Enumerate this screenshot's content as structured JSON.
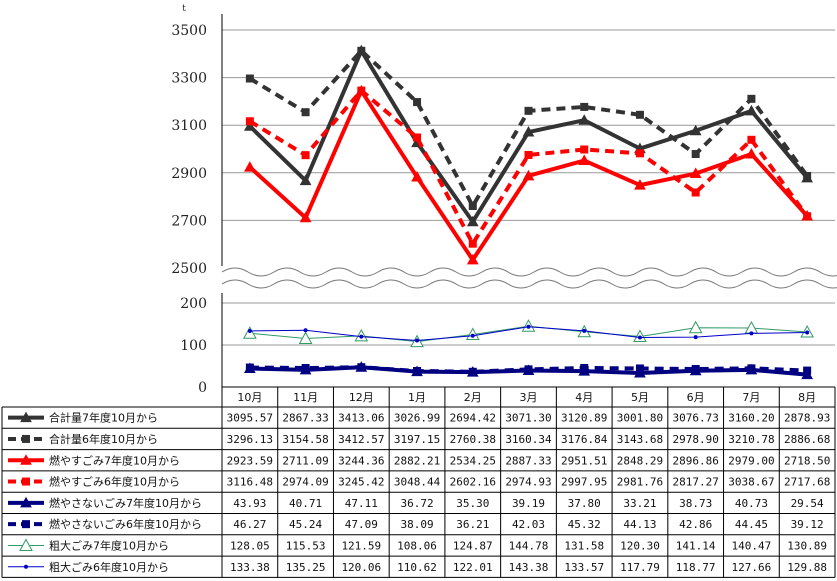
{
  "chart_data": {
    "type": "line",
    "unit_label": "t",
    "categories": [
      "10月",
      "11月",
      "12月",
      "1月",
      "2月",
      "3月",
      "4月",
      "5月",
      "6月",
      "7月",
      "8月"
    ],
    "y_axis_upper": {
      "ticks": [
        "3500",
        "3300",
        "3100",
        "2900",
        "2700",
        "2500"
      ],
      "range": [
        2500,
        3500
      ]
    },
    "y_axis_lower": {
      "ticks": [
        "200",
        "100",
        "0"
      ],
      "range": [
        0,
        200
      ]
    },
    "axis_break": true,
    "grid": true,
    "legend_placement": "data-table-left",
    "colors": {
      "dark_gray": "#333333",
      "red": "#ff0000",
      "navy": "#000080",
      "green": "#339966",
      "blue": "#0000cc"
    },
    "series": [
      {
        "name": "合計量7年度10月から",
        "color": "#333333",
        "dash": false,
        "marker": "triangle",
        "width": 4,
        "values": [
          3095.57,
          2867.33,
          3413.06,
          3026.99,
          2694.42,
          3071.3,
          3120.89,
          3001.8,
          3076.73,
          3160.2,
          2878.93
        ],
        "labels": [
          "3095.57",
          "2867.33",
          "3413.06",
          "3026.99",
          "2694.42",
          "3071.30",
          "3120.89",
          "3001.80",
          "3076.73",
          "3160.20",
          "2878.93"
        ]
      },
      {
        "name": "合計量6年度10月から",
        "color": "#333333",
        "dash": true,
        "marker": "square",
        "width": 4,
        "values": [
          3296.13,
          3154.58,
          3412.57,
          3197.15,
          2760.38,
          3160.34,
          3176.84,
          3143.68,
          2978.9,
          3210.78,
          2886.68
        ],
        "labels": [
          "3296.13",
          "3154.58",
          "3412.57",
          "3197.15",
          "2760.38",
          "3160.34",
          "3176.84",
          "3143.68",
          "2978.90",
          "3210.78",
          "2886.68"
        ]
      },
      {
        "name": "燃やすごみ7年度10月から",
        "color": "#ff0000",
        "dash": false,
        "marker": "triangle",
        "width": 4,
        "values": [
          2923.59,
          2711.09,
          3244.36,
          2882.21,
          2534.25,
          2887.33,
          2951.51,
          2848.29,
          2896.86,
          2979.0,
          2718.5
        ],
        "labels": [
          "2923.59",
          "2711.09",
          "3244.36",
          "2882.21",
          "2534.25",
          "2887.33",
          "2951.51",
          "2848.29",
          "2896.86",
          "2979.00",
          "2718.50"
        ]
      },
      {
        "name": "燃やすごみ6年度10月から",
        "color": "#ff0000",
        "dash": true,
        "marker": "square",
        "width": 4,
        "values": [
          3116.48,
          2974.09,
          3245.42,
          3048.44,
          2602.16,
          2974.93,
          2997.95,
          2981.76,
          2817.27,
          3038.67,
          2717.68
        ],
        "labels": [
          "3116.48",
          "2974.09",
          "3245.42",
          "3048.44",
          "2602.16",
          "2974.93",
          "2997.95",
          "2981.76",
          "2817.27",
          "3038.67",
          "2717.68"
        ]
      },
      {
        "name": "燃やさないごみ7年度10月から",
        "color": "#000080",
        "dash": false,
        "marker": "triangle",
        "width": 4,
        "values": [
          43.93,
          40.71,
          47.11,
          36.72,
          35.3,
          39.19,
          37.8,
          33.21,
          38.73,
          40.73,
          29.54
        ],
        "labels": [
          "43.93",
          "40.71",
          "47.11",
          "36.72",
          "35.30",
          "39.19",
          "37.80",
          "33.21",
          "38.73",
          "40.73",
          "29.54"
        ]
      },
      {
        "name": "燃やさないごみ6年度10月から",
        "color": "#000080",
        "dash": true,
        "marker": "square",
        "width": 4,
        "values": [
          46.27,
          45.24,
          47.09,
          38.09,
          36.21,
          42.03,
          45.32,
          44.13,
          42.86,
          44.45,
          39.12
        ],
        "labels": [
          "46.27",
          "45.24",
          "47.09",
          "38.09",
          "36.21",
          "42.03",
          "45.32",
          "44.13",
          "42.86",
          "44.45",
          "39.12"
        ]
      },
      {
        "name": "粗大ごみ7年度10月から",
        "color": "#339966",
        "dash": false,
        "marker": "open-triangle",
        "width": 1,
        "values": [
          128.05,
          115.53,
          121.59,
          108.06,
          124.87,
          144.78,
          131.58,
          120.3,
          141.14,
          140.47,
          130.89
        ],
        "labels": [
          "128.05",
          "115.53",
          "121.59",
          "108.06",
          "124.87",
          "144.78",
          "131.58",
          "120.30",
          "141.14",
          "140.47",
          "130.89"
        ]
      },
      {
        "name": "粗大ごみ6年度10月から",
        "color": "#0000cc",
        "dash": false,
        "marker": "dot",
        "width": 1,
        "values": [
          133.38,
          135.25,
          120.06,
          110.62,
          122.01,
          143.38,
          133.57,
          117.79,
          118.77,
          127.66,
          129.88
        ],
        "labels": [
          "133.38",
          "135.25",
          "120.06",
          "110.62",
          "122.01",
          "143.38",
          "133.57",
          "117.79",
          "118.77",
          "127.66",
          "129.88"
        ]
      }
    ]
  }
}
